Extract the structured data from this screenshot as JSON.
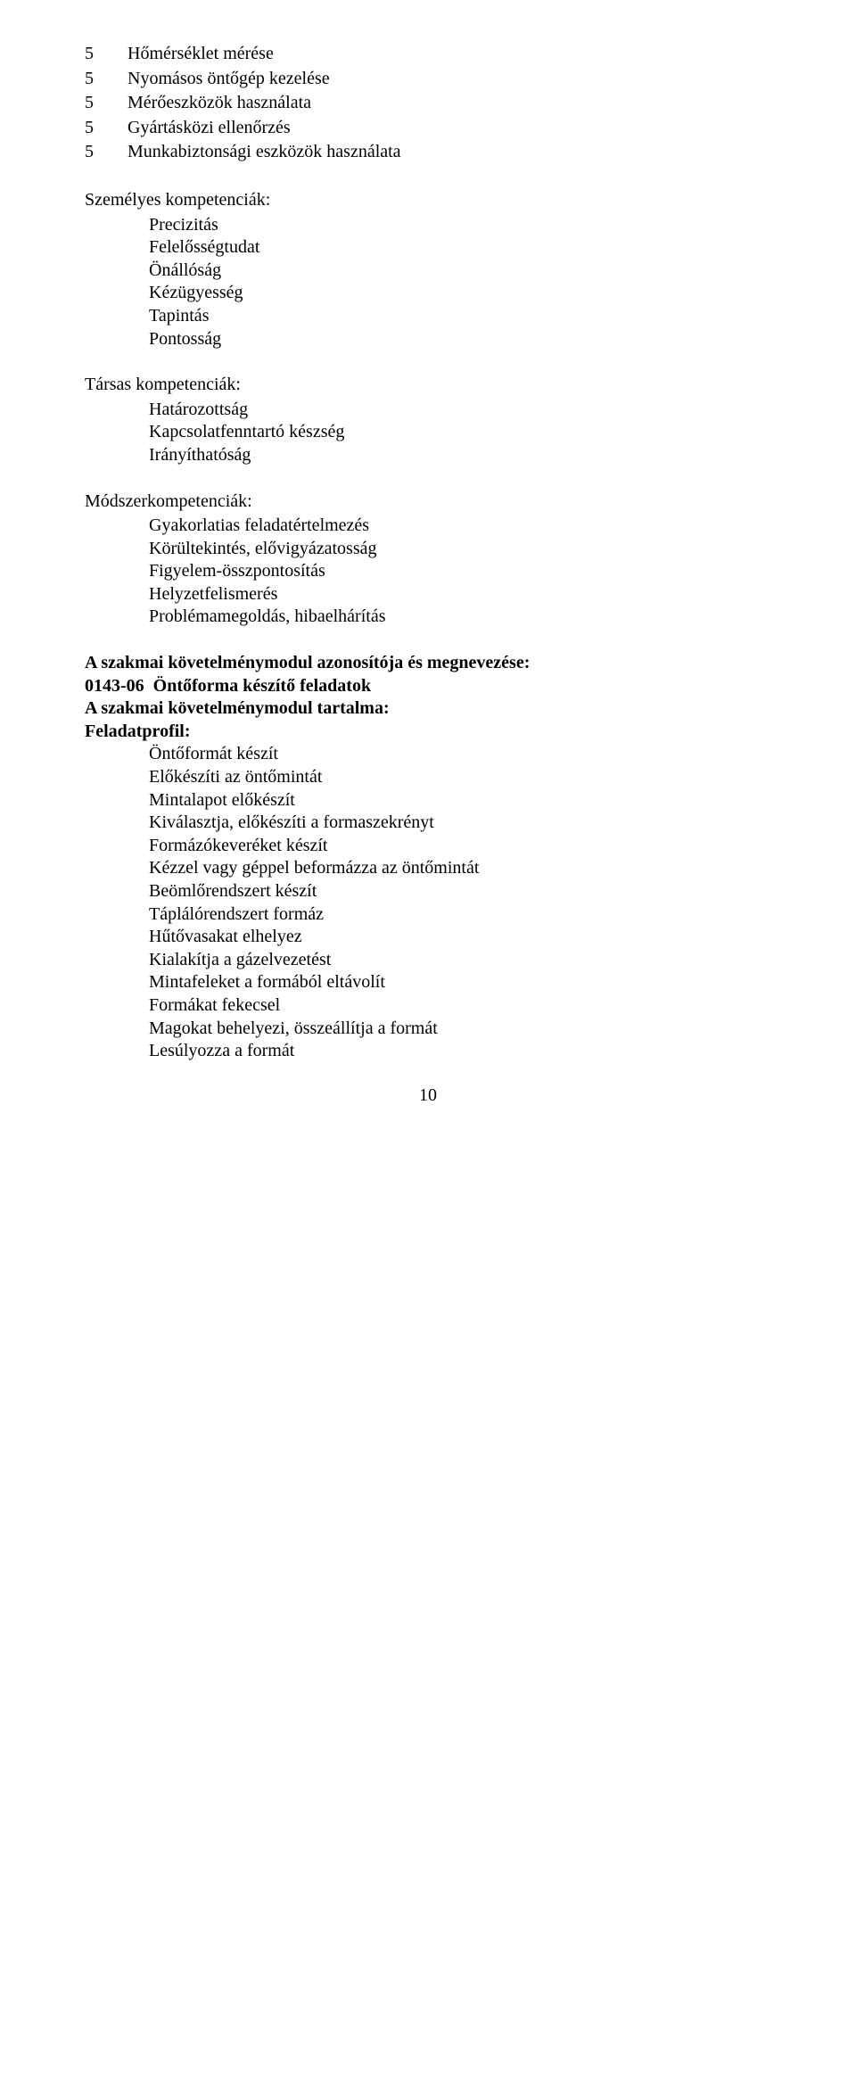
{
  "table1": {
    "rows": [
      {
        "num": "5",
        "text": "Hőmérséklet mérése"
      },
      {
        "num": "5",
        "text": "Nyomásos öntőgép kezelése"
      },
      {
        "num": "5",
        "text": "Mérőeszközök használata"
      },
      {
        "num": "5",
        "text": "Gyártásközi ellenőrzés"
      },
      {
        "num": "5",
        "text": "Munkabiztonsági eszközök használata"
      }
    ]
  },
  "section1": {
    "heading": "Személyes kompetenciák:",
    "items": [
      "Precizitás",
      "Felelősségtudat",
      "Önállóság",
      "Kézügyesség",
      "Tapintás",
      "Pontosság"
    ]
  },
  "section2": {
    "heading": "Társas kompetenciák:",
    "items": [
      "Határozottság",
      "Kapcsolatfenntartó készség",
      "Irányíthatóság"
    ]
  },
  "section3": {
    "heading": "Módszerkompetenciák:",
    "items": [
      "Gyakorlatias feladatértelmezés",
      "Körültekintés, elővigyázatosság",
      "Figyelem-összpontosítás",
      "Helyzetfelismerés",
      "Problémamegoldás, hibaelhárítás"
    ]
  },
  "module": {
    "line1": "A szakmai követelménymodul azonosítója és megnevezése:",
    "code": "0143-06",
    "title": "Öntőforma készítő feladatok",
    "line3": "A szakmai követelménymodul tartalma:",
    "line4": "Feladatprofil:",
    "items": [
      "Öntőformát készít",
      "Előkészíti az öntőmintát",
      "Mintalapot előkészít",
      "Kiválasztja, előkészíti a formaszekrényt",
      "Formázókeveréket készít",
      "Kézzel vagy géppel beformázza az öntőmintát",
      "Beömlőrendszert készít",
      "Táplálórendszert formáz",
      "Hűtővasakat elhelyez",
      "Kialakítja a gázelvezetést",
      "Mintafeleket a formából eltávolít",
      "Formákat fekecsel",
      "Magokat behelyezi, összeállítja a formát",
      "Lesúlyozza a formát"
    ]
  },
  "page_number": "10"
}
